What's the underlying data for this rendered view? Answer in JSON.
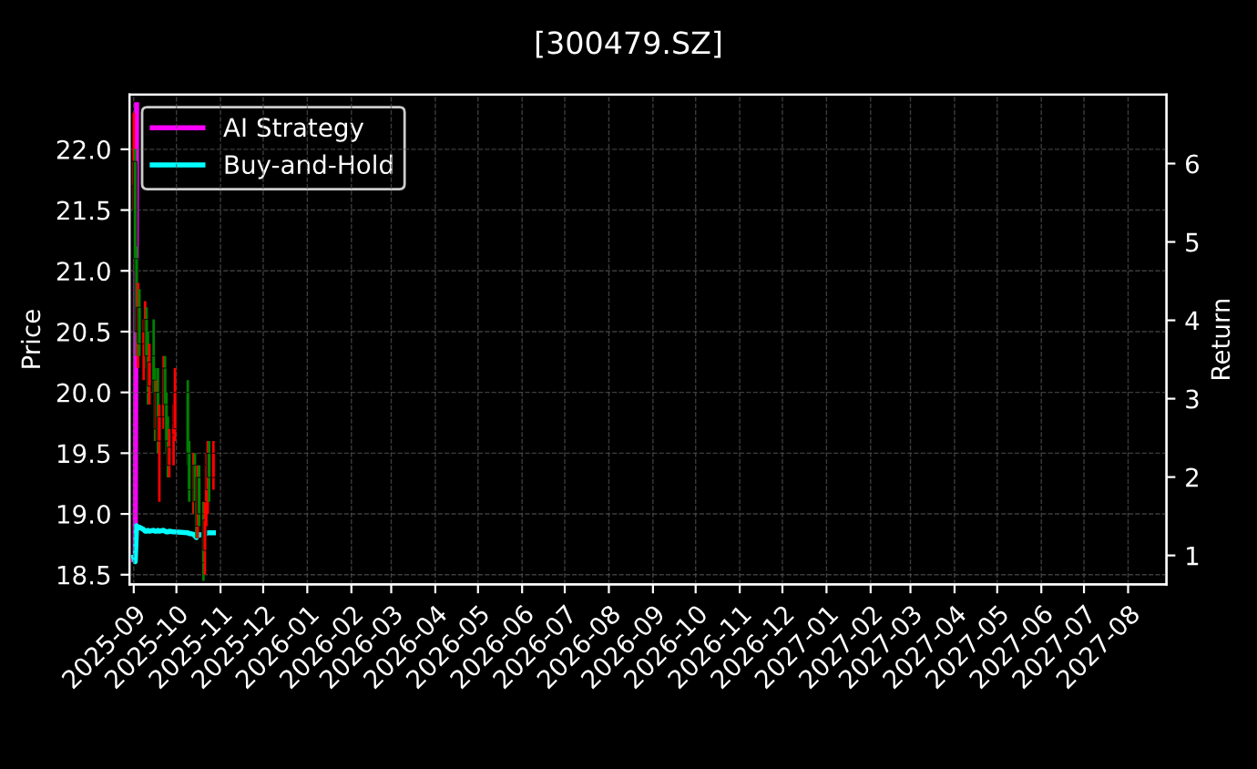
{
  "chart_data": {
    "type": "candlestick",
    "title": "[300479.SZ]",
    "ylabel": "Price",
    "y2label": "Return",
    "x": [
      "2025-09-01",
      "2025-09-02",
      "2025-09-03",
      "2025-09-04",
      "2025-09-05",
      "2025-09-08",
      "2025-09-09",
      "2025-09-10",
      "2025-09-11",
      "2025-09-12",
      "2025-09-15",
      "2025-09-16",
      "2025-09-17",
      "2025-09-18",
      "2025-09-19",
      "2025-09-22",
      "2025-09-23",
      "2025-09-24",
      "2025-09-25",
      "2025-09-26",
      "2025-09-29",
      "2025-09-30",
      "2025-10-09",
      "2025-10-10",
      "2025-10-13",
      "2025-10-14",
      "2025-10-15",
      "2025-10-16",
      "2025-10-17",
      "2025-10-20",
      "2025-10-21",
      "2025-10-22",
      "2025-10-23",
      "2025-10-24",
      "2025-10-27"
    ],
    "ohlc": [
      [
        21.7,
        22.3,
        21.5,
        21.9
      ],
      [
        21.9,
        22.0,
        21.0,
        21.1
      ],
      [
        21.1,
        21.2,
        20.3,
        20.5
      ],
      [
        20.5,
        20.9,
        20.2,
        20.7
      ],
      [
        20.7,
        20.85,
        20.3,
        20.4
      ],
      [
        20.4,
        20.6,
        20.1,
        20.5
      ],
      [
        20.5,
        20.75,
        20.3,
        20.6
      ],
      [
        20.6,
        20.7,
        20.2,
        20.3
      ],
      [
        20.3,
        20.5,
        19.9,
        20.0
      ],
      [
        20.05,
        20.4,
        19.9,
        20.25
      ],
      [
        20.3,
        20.6,
        20.0,
        20.1
      ],
      [
        20.1,
        20.2,
        19.6,
        19.7
      ],
      [
        19.7,
        20.1,
        19.6,
        20.0
      ],
      [
        20.0,
        20.2,
        19.5,
        19.6
      ],
      [
        19.6,
        19.9,
        19.1,
        19.8
      ],
      [
        19.8,
        20.3,
        19.7,
        20.2
      ],
      [
        20.2,
        20.3,
        19.8,
        19.9
      ],
      [
        19.9,
        20.0,
        19.5,
        19.6
      ],
      [
        19.6,
        19.8,
        19.3,
        19.4
      ],
      [
        19.4,
        19.7,
        19.3,
        19.55
      ],
      [
        19.65,
        19.9,
        19.4,
        19.75
      ],
      [
        19.7,
        20.2,
        19.6,
        20.0
      ],
      [
        20.0,
        20.1,
        19.4,
        19.5
      ],
      [
        19.5,
        19.6,
        19.1,
        19.2
      ],
      [
        19.2,
        19.5,
        19.0,
        19.4
      ],
      [
        19.4,
        19.5,
        19.0,
        19.1
      ],
      [
        19.1,
        19.3,
        18.8,
        18.9
      ],
      [
        18.9,
        19.4,
        18.8,
        19.3
      ],
      [
        19.3,
        19.4,
        18.9,
        19.0
      ],
      [
        19.0,
        19.1,
        18.45,
        18.6
      ],
      [
        18.7,
        19.1,
        18.5,
        18.95
      ],
      [
        19.1,
        19.5,
        18.9,
        19.4
      ],
      [
        19.2,
        19.6,
        19.0,
        19.5
      ],
      [
        19.5,
        19.6,
        19.1,
        19.3
      ],
      [
        19.3,
        19.6,
        19.2,
        19.5
      ]
    ],
    "colors": [
      "#ff0000",
      "#008000",
      "#008000",
      "#ff0000",
      "#008000",
      "#ff0000",
      "#ff0000",
      "#008000",
      "#008000",
      "#ff0000",
      "#008000",
      "#008000",
      "#ff0000",
      "#008000",
      "#ff0000",
      "#ff0000",
      "#008000",
      "#008000",
      "#008000",
      "#ff0000",
      "#ff0000",
      "#ff0000",
      "#008000",
      "#008000",
      "#ff0000",
      "#008000",
      "#008000",
      "#ff0000",
      "#008000",
      "#008000",
      "#ff0000",
      "#ff0000",
      "#ff0000",
      "#008000",
      "#ff0000"
    ],
    "series": [
      {
        "name": "AI Strategy",
        "type": "line",
        "axis": "y2",
        "color": "#ff00ff",
        "x": [
          "2025-09-01",
          "2025-09-02",
          "2025-09-03"
        ],
        "values": [
          0.95,
          0.95,
          6.75
        ]
      },
      {
        "name": "Buy-and-Hold",
        "type": "line",
        "axis": "y2",
        "color": "#00ffff",
        "values": [
          0.98,
          0.92,
          1.38,
          1.35,
          1.36,
          1.33,
          1.31,
          1.31,
          1.32,
          1.31,
          1.32,
          1.31,
          1.31,
          1.32,
          1.31,
          1.32,
          1.31,
          1.3,
          1.3,
          1.31,
          1.3,
          1.3,
          1.29,
          1.28,
          1.27,
          1.25,
          1.23,
          1.27,
          1.26,
          1.27,
          1.28,
          1.28,
          1.29,
          1.29,
          1.29
        ]
      }
    ],
    "xlim": [
      "2025-08-29",
      "2027-08-28"
    ],
    "xticks": [
      {
        "value": "2025-09-01",
        "label": "2025-09"
      },
      {
        "value": "2025-10-01",
        "label": "2025-10"
      },
      {
        "value": "2025-11-01",
        "label": "2025-11"
      },
      {
        "value": "2025-12-01",
        "label": "2025-12"
      },
      {
        "value": "2026-01-01",
        "label": "2026-01"
      },
      {
        "value": "2026-02-01",
        "label": "2026-02"
      },
      {
        "value": "2026-03-01",
        "label": "2026-03"
      },
      {
        "value": "2026-04-01",
        "label": "2026-04"
      },
      {
        "value": "2026-05-01",
        "label": "2026-05"
      },
      {
        "value": "2026-06-01",
        "label": "2026-06"
      },
      {
        "value": "2026-07-01",
        "label": "2026-07"
      },
      {
        "value": "2026-08-01",
        "label": "2026-08"
      },
      {
        "value": "2026-09-01",
        "label": "2026-09"
      },
      {
        "value": "2026-10-01",
        "label": "2026-10"
      },
      {
        "value": "2026-11-01",
        "label": "2026-11"
      },
      {
        "value": "2026-12-01",
        "label": "2026-12"
      },
      {
        "value": "2027-01-01",
        "label": "2027-01"
      },
      {
        "value": "2027-02-01",
        "label": "2027-02"
      },
      {
        "value": "2027-03-01",
        "label": "2027-03"
      },
      {
        "value": "2027-04-01",
        "label": "2027-04"
      },
      {
        "value": "2027-05-01",
        "label": "2027-05"
      },
      {
        "value": "2027-06-01",
        "label": "2027-06"
      },
      {
        "value": "2027-07-01",
        "label": "2027-07"
      },
      {
        "value": "2027-08-01",
        "label": "2027-08"
      }
    ],
    "ylim": [
      18.42,
      22.45
    ],
    "yticks": [
      {
        "value": 18.5,
        "label": "18.5"
      },
      {
        "value": 19.0,
        "label": "19.0"
      },
      {
        "value": 19.5,
        "label": "19.5"
      },
      {
        "value": 20.0,
        "label": "20.0"
      },
      {
        "value": 20.5,
        "label": "20.5"
      },
      {
        "value": 21.0,
        "label": "21.0"
      },
      {
        "value": 21.5,
        "label": "21.5"
      },
      {
        "value": 22.0,
        "label": "22.0"
      }
    ],
    "y2lim": [
      0.63,
      6.88
    ],
    "y2ticks": [
      1,
      2,
      3,
      4,
      5,
      6
    ],
    "grid": true,
    "legend": "top left",
    "line_style": "solid",
    "marker": "none"
  }
}
